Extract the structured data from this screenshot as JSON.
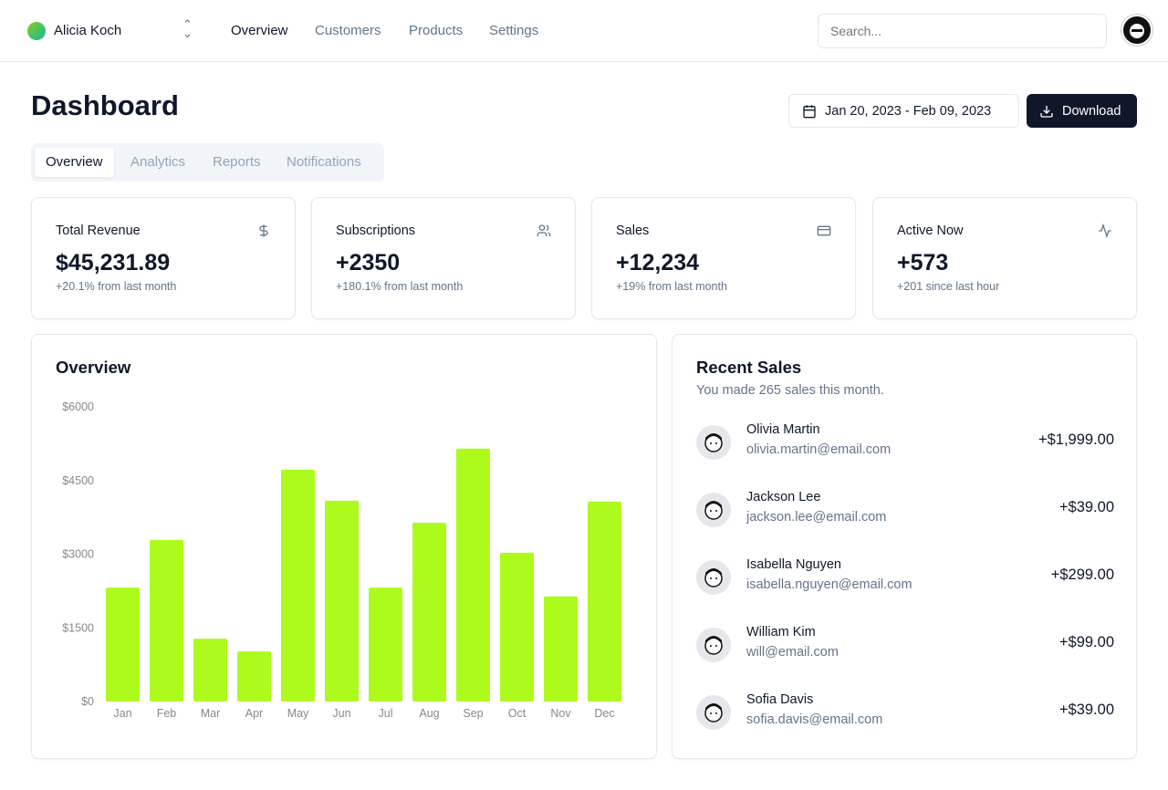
{
  "header": {
    "team": "Alicia Koch",
    "nav": [
      "Overview",
      "Customers",
      "Products",
      "Settings"
    ],
    "active_nav": "Overview",
    "search_placeholder": "Search..."
  },
  "page": {
    "title": "Dashboard",
    "date_range": "Jan 20, 2023 - Feb 09, 2023",
    "download_label": "Download",
    "tabs": [
      "Overview",
      "Analytics",
      "Reports",
      "Notifications"
    ],
    "active_tab": "Overview"
  },
  "stats": [
    {
      "title": "Total Revenue",
      "value": "$45,231.89",
      "sub": "+20.1% from last month",
      "icon": "dollar-icon"
    },
    {
      "title": "Subscriptions",
      "value": "+2350",
      "sub": "+180.1% from last month",
      "icon": "users-icon"
    },
    {
      "title": "Sales",
      "value": "+12,234",
      "sub": "+19% from last month",
      "icon": "credit-card-icon"
    },
    {
      "title": "Active Now",
      "value": "+573",
      "sub": "+201 since last hour",
      "icon": "activity-icon"
    }
  ],
  "overview": {
    "title": "Overview"
  },
  "chart_data": {
    "type": "bar",
    "categories": [
      "Jan",
      "Feb",
      "Mar",
      "Apr",
      "May",
      "Jun",
      "Jul",
      "Aug",
      "Sep",
      "Oct",
      "Nov",
      "Dec"
    ],
    "values": [
      2320,
      3290,
      1280,
      1020,
      4720,
      4090,
      2320,
      3640,
      5150,
      3030,
      2140,
      4070
    ],
    "yticks": [
      "$0",
      "$1500",
      "$3000",
      "$4500",
      "$6000"
    ],
    "ylim": [
      0,
      6000
    ],
    "grid": false,
    "color": "#adfa1d"
  },
  "recent_sales": {
    "title": "Recent Sales",
    "subtitle": "You made 265 sales this month.",
    "items": [
      {
        "name": "Olivia Martin",
        "email": "olivia.martin@email.com",
        "amount": "+$1,999.00"
      },
      {
        "name": "Jackson Lee",
        "email": "jackson.lee@email.com",
        "amount": "+$39.00"
      },
      {
        "name": "Isabella Nguyen",
        "email": "isabella.nguyen@email.com",
        "amount": "+$299.00"
      },
      {
        "name": "William Kim",
        "email": "will@email.com",
        "amount": "+$99.00"
      },
      {
        "name": "Sofia Davis",
        "email": "sofia.davis@email.com",
        "amount": "+$39.00"
      }
    ]
  }
}
